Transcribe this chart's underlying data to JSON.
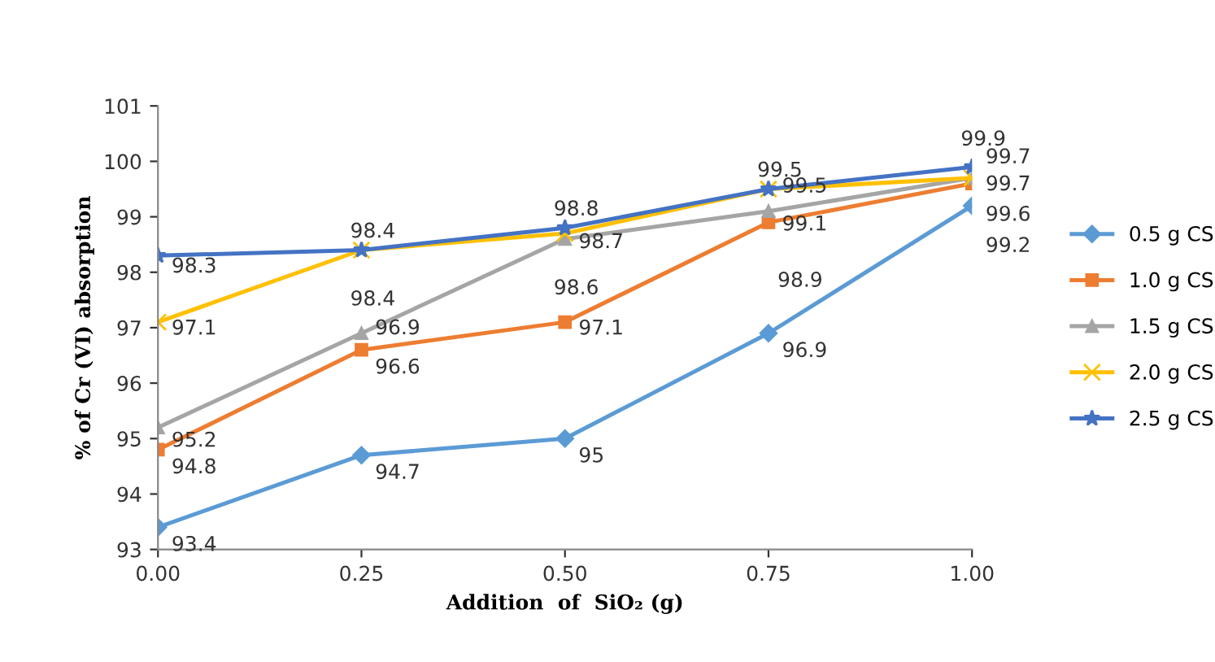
{
  "chart_data": {
    "type": "line",
    "xlabel": "Addition  of  SiO₂ (g)",
    "ylabel": "% of Cr (VI) absorption",
    "x": [
      0,
      0.25,
      0.5,
      0.75,
      1.0
    ],
    "xlim": [
      0,
      1.0
    ],
    "xticks": [
      {
        "value": 0,
        "label": "0.00"
      },
      {
        "value": 0.25,
        "label": "0.25"
      },
      {
        "value": 0.5,
        "label": "0.50"
      },
      {
        "value": 0.75,
        "label": "0.75"
      },
      {
        "value": 1.0,
        "label": "1.00"
      }
    ],
    "ylim": [
      93,
      101
    ],
    "yticks": [
      93,
      94,
      95,
      96,
      97,
      98,
      99,
      100,
      101
    ],
    "grid": false,
    "legend": "right",
    "data_labels": true,
    "line_style": "solid",
    "series": [
      {
        "name": "0.5 g CS",
        "color": "#5b9bd5",
        "marker": "diamond",
        "values": [
          93.4,
          94.7,
          95,
          96.9,
          99.2
        ]
      },
      {
        "name": "1.0 g CS",
        "color": "#ed7d31",
        "marker": "square",
        "values": [
          94.8,
          96.6,
          97.1,
          98.9,
          99.6
        ]
      },
      {
        "name": "1.5 g CS",
        "color": "#a5a5a5",
        "marker": "triangle",
        "values": [
          95.2,
          96.9,
          98.6,
          99.1,
          99.7
        ]
      },
      {
        "name": "2.0 g CS",
        "color": "#ffc000",
        "marker": "cross",
        "values": [
          97.1,
          98.4,
          98.7,
          99.5,
          99.7
        ]
      },
      {
        "name": "2.5 g CS",
        "color": "#4472c4",
        "marker": "star",
        "values": [
          98.3,
          98.4,
          98.8,
          99.5,
          99.9
        ]
      }
    ]
  }
}
